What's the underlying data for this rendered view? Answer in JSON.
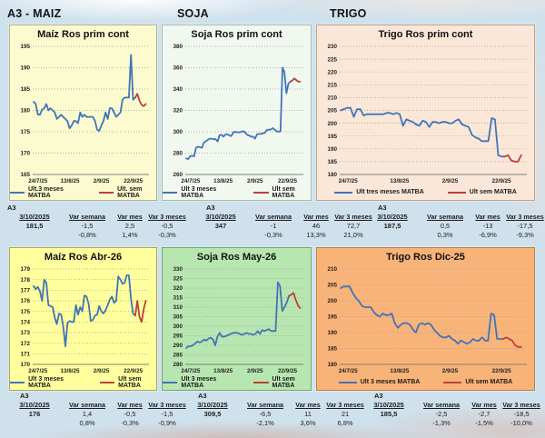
{
  "section_headers": [
    "A3 - MAIZ",
    "SOJA",
    "TRIGO"
  ],
  "colors": {
    "page_bg": "#cfe1ec",
    "line_blue": "#4273b8",
    "line_red": "#bc403c",
    "grid": "#9c9c9c",
    "axis": "#7f7f7f",
    "text": "#1d1d1d"
  },
  "chart_data": [
    {
      "type": "line",
      "title": "Maíz Ros prim cont",
      "panel_bg": "#fbfbcf",
      "border": "#b3b38c",
      "ylim": [
        165,
        195
      ],
      "yticks": [
        165,
        170,
        175,
        180,
        185,
        190,
        195
      ],
      "xticks": [
        "24/7/25",
        "13/8/25",
        "2/9/25",
        "22/9/25"
      ],
      "series": [
        {
          "name": "Ult.3 meses MATBA",
          "color": "#4273b8",
          "values": [
            182,
            181.5,
            179,
            179,
            180.2,
            180.5,
            181.5,
            180,
            180.5,
            180,
            179.5,
            178,
            178.5,
            179,
            178.5,
            178,
            177.5,
            175.8,
            176.5,
            177.5,
            177.5,
            177,
            179.5,
            178.5,
            179,
            178.5,
            178.5,
            178.5,
            178.5,
            177.5,
            175.5,
            175.2,
            176.5,
            177.5,
            179.5,
            178,
            180.5,
            180.5,
            179.5,
            178.5,
            179,
            179.5,
            182.5,
            183,
            183,
            183,
            193,
            182.5,
            183
          ]
        },
        {
          "name": "Ult. sem MATBA",
          "color": "#bc403c",
          "values": [
            183,
            183.9,
            182.3,
            181.3,
            181,
            181.5
          ]
        }
      ]
    },
    {
      "type": "line",
      "title": "Soja Ros prim cont",
      "panel_bg": "#f1f8ef",
      "border": "#a8bfa8",
      "ylim": [
        260,
        380
      ],
      "yticks": [
        260,
        280,
        300,
        320,
        340,
        360,
        380
      ],
      "xticks": [
        "24/7/25",
        "13/8/25",
        "2/9/25",
        "22/9/25"
      ],
      "series": [
        {
          "name": "Ult 3 meses MATBA",
          "color": "#4273b8",
          "values": [
            275,
            274.5,
            277,
            277.5,
            277,
            285,
            286,
            285.5,
            285,
            290,
            291,
            292.5,
            293.5,
            293.5,
            293,
            293,
            291,
            297,
            297,
            295.5,
            297.5,
            297.5,
            296.5,
            296,
            299.5,
            300,
            299.5,
            299.5,
            300,
            300.5,
            299.5,
            297,
            296.5,
            295.5,
            295.5,
            293.5,
            297.5,
            298,
            298,
            298.5,
            299,
            301.5,
            302,
            302,
            303.5,
            302,
            300.5,
            300,
            300.5,
            360,
            356,
            336,
            345,
            347
          ]
        },
        {
          "name": "Ult sem MATBA",
          "color": "#bc403c",
          "values": [
            347,
            348,
            350,
            348.5,
            347,
            347
          ]
        }
      ]
    },
    {
      "type": "line",
      "title": "Trigo Ros prim cont",
      "panel_bg": "#fbe7d8",
      "border": "#c2a18c",
      "ylim": [
        180,
        230
      ],
      "yticks": [
        180,
        185,
        190,
        195,
        200,
        205,
        210,
        215,
        220,
        225,
        230
      ],
      "xticks": [
        "24/7/25",
        "13/8/25",
        "2/9/25",
        "22/9/25"
      ],
      "series": [
        {
          "name": "Ult tres meses MATBA",
          "color": "#4273b8",
          "values": [
            205,
            205.5,
            206,
            206,
            202.5,
            205.5,
            205.5,
            203,
            203.5,
            203.5,
            203.5,
            203.5,
            203.5,
            203.5,
            204,
            204,
            203.5,
            204,
            203.5,
            199,
            201.5,
            201,
            200.5,
            199.5,
            199,
            201,
            200.5,
            198.5,
            200.5,
            200.5,
            200,
            200.5,
            200.5,
            200,
            200,
            201,
            201.5,
            199.5,
            199,
            198.5,
            195.5,
            194.5,
            194,
            193,
            193,
            193,
            202,
            201.5,
            187.5,
            187,
            187
          ]
        },
        {
          "name": "Ult sem MATBA",
          "color": "#bc403c",
          "values": [
            187,
            187.5,
            185.5,
            185,
            185,
            187.5
          ]
        }
      ]
    },
    {
      "type": "line",
      "title": "Maíz Ros Abr-26",
      "panel_bg": "#ffff9d",
      "border": "#a8a855",
      "ylim": [
        170,
        179
      ],
      "yticks": [
        170,
        171,
        172,
        173,
        174,
        175,
        176,
        177,
        178,
        179
      ],
      "xticks": [
        "24/7/25",
        "13/8/25",
        "2/9/25",
        "22/9/25"
      ],
      "series": [
        {
          "name": "Ult 3 meses MATBA",
          "color": "#4273b8",
          "values": [
            177.4,
            177.1,
            177.3,
            176.9,
            176.0,
            178.0,
            177.7,
            175.6,
            175.5,
            175.4,
            174.4,
            173.8,
            174.8,
            174.7,
            173.6,
            171.7,
            173.9,
            174.1,
            174.0,
            174.0,
            175.6,
            174.7,
            175.4,
            175.0,
            176.5,
            176.4,
            175.7,
            174.1,
            174.2,
            174.6,
            174.7,
            175.5,
            175.0,
            174.8,
            175.1,
            175.6,
            176.1,
            176.4,
            175.8,
            176.0,
            178.3,
            178.0,
            177.6,
            177.7,
            178.4,
            178.4,
            176.2,
            174.8,
            174.6
          ]
        },
        {
          "name": "Ult sem MATBA",
          "color": "#bc403c",
          "values": [
            174.6,
            176.0,
            174.5,
            174.0,
            175.2,
            176.0
          ]
        }
      ]
    },
    {
      "type": "line",
      "title": "Soja Ros May-26",
      "panel_bg": "#b8e6b0",
      "border": "#6fa86f",
      "ylim": [
        280,
        330
      ],
      "yticks": [
        280,
        285,
        290,
        295,
        300,
        305,
        310,
        315,
        320,
        325,
        330
      ],
      "xticks": [
        "24/7/25",
        "13/8/25",
        "2/9/25",
        "22/9/25"
      ],
      "series": [
        {
          "name": "Ult 3 meses MATBA",
          "color": "#4273b8",
          "values": [
            288.5,
            289.5,
            289.5,
            290,
            291,
            292,
            291.5,
            292,
            293,
            292.5,
            293.5,
            294,
            293,
            290,
            294.5,
            296.5,
            294.5,
            294.5,
            295,
            295.5,
            296,
            296.5,
            296.5,
            296.5,
            296,
            295.5,
            296,
            296.5,
            296,
            296,
            295.5,
            296,
            297.5,
            296,
            298,
            297.5,
            298,
            298.5,
            297.5,
            297.5,
            297.5,
            323,
            321,
            308,
            310,
            312.5,
            316
          ]
        },
        {
          "name": "Ult sem MATBA",
          "color": "#bc403c",
          "values": [
            316,
            316.5,
            317.5,
            314,
            311,
            309.5
          ]
        }
      ]
    },
    {
      "type": "line",
      "title": "Trigo Ros Dic-25",
      "panel_bg": "#f8b379",
      "border": "#b97f47",
      "ylim": [
        180,
        210
      ],
      "yticks": [
        180,
        185,
        190,
        195,
        200,
        205,
        210
      ],
      "xticks": [
        "24/7/25",
        "13/8/25",
        "2/9/25",
        "22/9/25"
      ],
      "series": [
        {
          "name": "Ult 3 meses MATBA",
          "color": "#4273b8",
          "values": [
            204,
            204.5,
            204.5,
            204.5,
            202.5,
            201,
            200,
            198.5,
            198,
            198,
            198,
            196.5,
            195.5,
            195,
            196,
            195.5,
            195.5,
            196,
            193,
            191.5,
            192.5,
            193,
            193,
            192.5,
            191,
            190,
            192.5,
            193,
            192.5,
            193,
            192.5,
            191,
            190,
            189,
            188.5,
            188.5,
            189,
            188,
            187.5,
            186.5,
            187.5,
            187,
            186.5,
            187,
            188,
            187.5,
            187.5,
            188.5,
            187.5,
            187.5,
            196,
            195.5,
            188,
            188,
            188
          ]
        },
        {
          "name": "Ult sem MATBA",
          "color": "#bc403c",
          "values": [
            188,
            188.5,
            188,
            187.5,
            186,
            185.5,
            185.5
          ]
        }
      ]
    }
  ],
  "tables": [
    {
      "label": "A3",
      "date": "3/10/2025",
      "headers": [
        "Var semana",
        "Var mes",
        "Var 3 meses"
      ],
      "value": "181,5",
      "deltas": [
        "-1,5",
        "2,5",
        "-0,5"
      ],
      "pcts": [
        "-0,8%",
        "1,4%",
        "-0,3%"
      ]
    },
    {
      "label": "A3",
      "date": "3/10/2025",
      "headers": [
        "Var semana",
        "Var mes",
        "Var 3 meses"
      ],
      "value": "347",
      "deltas": [
        "-1",
        "46",
        "72,7"
      ],
      "pcts": [
        "-0,3%",
        "13,3%",
        "21,0%"
      ]
    },
    {
      "label": "A3",
      "date": "3/10/2025",
      "headers": [
        "Var semana",
        "Var mes",
        "Var 3 meses"
      ],
      "value": "187,5",
      "deltas": [
        "0,5",
        "-13",
        "-17,5"
      ],
      "pcts": [
        "0,3%",
        "-6,9%",
        "-9,3%"
      ]
    },
    {
      "label": "A3",
      "date": "3/10/2025",
      "headers": [
        "Var semana",
        "Var mes",
        "Var 3 meses"
      ],
      "value": "176",
      "deltas": [
        "1,4",
        "-0,5",
        "-1,5"
      ],
      "pcts": [
        "0,8%",
        "-0,3%",
        "-0,9%"
      ]
    },
    {
      "label": "A3",
      "date": "3/10/2025",
      "headers": [
        "Var semana",
        "Var mes",
        "Var 3 meses"
      ],
      "value": "309,5",
      "deltas": [
        "-6,5",
        "11",
        "21"
      ],
      "pcts": [
        "-2,1%",
        "3,6%",
        "6,8%"
      ]
    },
    {
      "label": "A3",
      "date": "3/10/2025",
      "headers": [
        "Var semana",
        "Var mes",
        "Var 3 meses"
      ],
      "value": "185,5",
      "deltas": [
        "-2,5",
        "-2,7",
        "-18,5"
      ],
      "pcts": [
        "-1,3%",
        "-1,5%",
        "-10,0%"
      ]
    }
  ]
}
